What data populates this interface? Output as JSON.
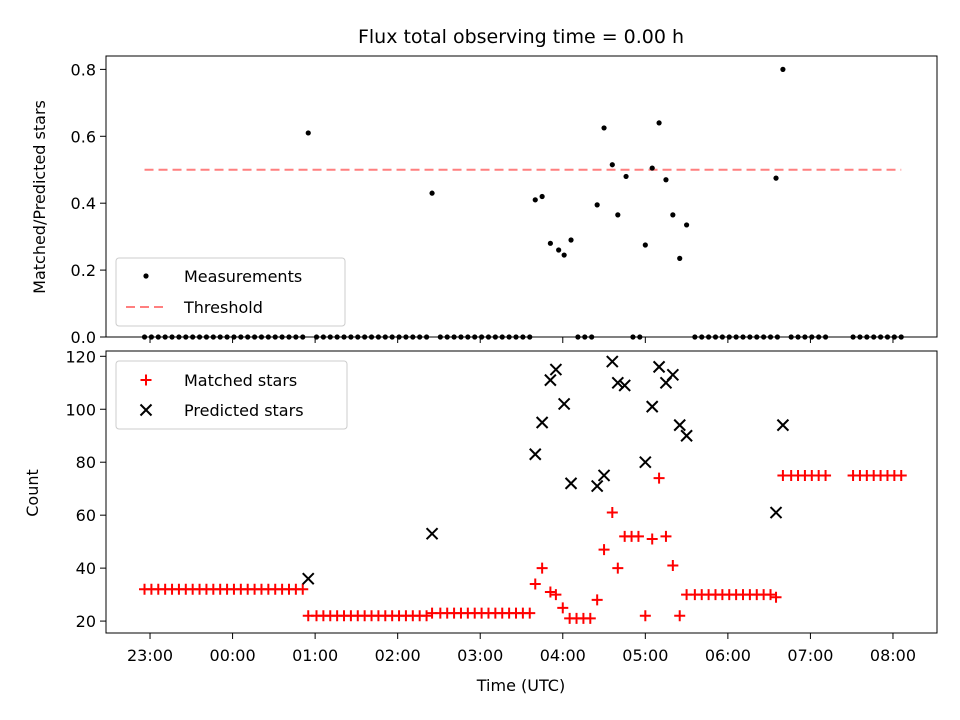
{
  "chart_data": [
    {
      "type": "scatter",
      "title": "Flux total observing time = 0.00 h",
      "xlabel": "",
      "ylabel": "Matched/Predicted stars",
      "xlim": [
        "22:28",
        "08:32"
      ],
      "ylim": [
        0,
        0.84
      ],
      "yticks": [
        0.0,
        0.2,
        0.4,
        0.6,
        0.8
      ],
      "legend_position": "lower-left",
      "legend": [
        {
          "label": "Measurements",
          "marker": "dot",
          "color": "#000000"
        },
        {
          "label": "Threshold",
          "marker": "dashed-line",
          "color": "#ff7f7f"
        }
      ],
      "threshold": {
        "value": 0.5,
        "x_start": "22:56",
        "x_end": "08:06"
      },
      "series": [
        {
          "name": "Measurements",
          "color": "#000000",
          "points": [
            [
              "22:56",
              0
            ],
            [
              "23:01",
              0
            ],
            [
              "23:06",
              0
            ],
            [
              "23:11",
              0
            ],
            [
              "23:16",
              0
            ],
            [
              "23:21",
              0
            ],
            [
              "23:26",
              0
            ],
            [
              "23:31",
              0
            ],
            [
              "23:36",
              0
            ],
            [
              "23:41",
              0
            ],
            [
              "23:46",
              0
            ],
            [
              "23:51",
              0
            ],
            [
              "23:56",
              0
            ],
            [
              "00:01",
              0
            ],
            [
              "00:06",
              0
            ],
            [
              "00:11",
              0
            ],
            [
              "00:16",
              0
            ],
            [
              "00:21",
              0
            ],
            [
              "00:26",
              0
            ],
            [
              "00:31",
              0
            ],
            [
              "00:36",
              0
            ],
            [
              "00:41",
              0
            ],
            [
              "00:46",
              0
            ],
            [
              "00:51",
              0
            ],
            [
              "00:55",
              0.61
            ],
            [
              "01:01",
              0
            ],
            [
              "01:06",
              0
            ],
            [
              "01:11",
              0
            ],
            [
              "01:16",
              0
            ],
            [
              "01:21",
              0
            ],
            [
              "01:26",
              0
            ],
            [
              "01:31",
              0
            ],
            [
              "01:36",
              0
            ],
            [
              "01:41",
              0
            ],
            [
              "01:46",
              0
            ],
            [
              "01:51",
              0
            ],
            [
              "01:56",
              0
            ],
            [
              "02:01",
              0
            ],
            [
              "02:06",
              0
            ],
            [
              "02:11",
              0
            ],
            [
              "02:16",
              0
            ],
            [
              "02:21",
              0
            ],
            [
              "02:25",
              0.43
            ],
            [
              "02:31",
              0
            ],
            [
              "02:36",
              0
            ],
            [
              "02:41",
              0
            ],
            [
              "02:46",
              0
            ],
            [
              "02:51",
              0
            ],
            [
              "02:56",
              0
            ],
            [
              "03:01",
              0
            ],
            [
              "03:06",
              0
            ],
            [
              "03:11",
              0
            ],
            [
              "03:16",
              0
            ],
            [
              "03:21",
              0
            ],
            [
              "03:26",
              0
            ],
            [
              "03:31",
              0
            ],
            [
              "03:36",
              0
            ],
            [
              "03:40",
              0.41
            ],
            [
              "03:45",
              0.42
            ],
            [
              "03:51",
              0.28
            ],
            [
              "03:57",
              0.26
            ],
            [
              "04:01",
              0.245
            ],
            [
              "04:06",
              0.29
            ],
            [
              "04:11",
              0
            ],
            [
              "04:16",
              0
            ],
            [
              "04:21",
              0
            ],
            [
              "04:25",
              0.395
            ],
            [
              "04:30",
              0.625
            ],
            [
              "04:36",
              0.515
            ],
            [
              "04:40",
              0.365
            ],
            [
              "04:46",
              0.48
            ],
            [
              "04:51",
              0
            ],
            [
              "04:56",
              0
            ],
            [
              "05:00",
              0.275
            ],
            [
              "05:05",
              0.505
            ],
            [
              "05:10",
              0.64
            ],
            [
              "05:15",
              0.47
            ],
            [
              "05:20",
              0.365
            ],
            [
              "05:25",
              0.235
            ],
            [
              "05:30",
              0.335
            ],
            [
              "05:36",
              0
            ],
            [
              "05:41",
              0
            ],
            [
              "05:46",
              0
            ],
            [
              "05:51",
              0
            ],
            [
              "05:56",
              0
            ],
            [
              "06:01",
              0
            ],
            [
              "06:06",
              0
            ],
            [
              "06:11",
              0
            ],
            [
              "06:16",
              0
            ],
            [
              "06:21",
              0
            ],
            [
              "06:26",
              0
            ],
            [
              "06:31",
              0
            ],
            [
              "06:36",
              0
            ],
            [
              "06:35",
              0.475
            ],
            [
              "06:40",
              0.8
            ],
            [
              "06:46",
              0
            ],
            [
              "06:51",
              0
            ],
            [
              "06:56",
              0
            ],
            [
              "07:01",
              0
            ],
            [
              "07:06",
              0
            ],
            [
              "07:11",
              0
            ],
            [
              "07:31",
              0
            ],
            [
              "07:36",
              0
            ],
            [
              "07:41",
              0
            ],
            [
              "07:46",
              0
            ],
            [
              "07:51",
              0
            ],
            [
              "07:56",
              0
            ],
            [
              "08:01",
              0
            ],
            [
              "08:06",
              0
            ]
          ]
        }
      ]
    },
    {
      "type": "scatter",
      "title": "",
      "xlabel": "Time (UTC)",
      "ylabel": "Count",
      "xlim": [
        "22:28",
        "08:32"
      ],
      "ylim": [
        15.5,
        122
      ],
      "yticks": [
        20,
        40,
        60,
        80,
        100,
        120
      ],
      "xticks": [
        "23:00",
        "00:00",
        "01:00",
        "02:00",
        "03:00",
        "04:00",
        "05:00",
        "06:00",
        "07:00",
        "08:00"
      ],
      "legend_position": "upper-left",
      "legend": [
        {
          "label": "Matched stars",
          "marker": "plus",
          "color": "#ff0000"
        },
        {
          "label": "Predicted stars",
          "marker": "x",
          "color": "#000000"
        }
      ],
      "series": [
        {
          "name": "Matched stars",
          "marker": "plus",
          "color": "#ff0000",
          "points": [
            [
              "22:56",
              32
            ],
            [
              "23:01",
              32
            ],
            [
              "23:06",
              32
            ],
            [
              "23:11",
              32
            ],
            [
              "23:16",
              32
            ],
            [
              "23:21",
              32
            ],
            [
              "23:26",
              32
            ],
            [
              "23:31",
              32
            ],
            [
              "23:36",
              32
            ],
            [
              "23:41",
              32
            ],
            [
              "23:46",
              32
            ],
            [
              "23:51",
              32
            ],
            [
              "23:56",
              32
            ],
            [
              "00:01",
              32
            ],
            [
              "00:06",
              32
            ],
            [
              "00:11",
              32
            ],
            [
              "00:16",
              32
            ],
            [
              "00:21",
              32
            ],
            [
              "00:26",
              32
            ],
            [
              "00:31",
              32
            ],
            [
              "00:36",
              32
            ],
            [
              "00:41",
              32
            ],
            [
              "00:46",
              32
            ],
            [
              "00:51",
              32
            ],
            [
              "00:55",
              22
            ],
            [
              "01:01",
              22
            ],
            [
              "01:06",
              22
            ],
            [
              "01:11",
              22
            ],
            [
              "01:16",
              22
            ],
            [
              "01:21",
              22
            ],
            [
              "01:26",
              22
            ],
            [
              "01:31",
              22
            ],
            [
              "01:36",
              22
            ],
            [
              "01:41",
              22
            ],
            [
              "01:46",
              22
            ],
            [
              "01:51",
              22
            ],
            [
              "01:56",
              22
            ],
            [
              "02:01",
              22
            ],
            [
              "02:06",
              22
            ],
            [
              "02:11",
              22
            ],
            [
              "02:16",
              22
            ],
            [
              "02:21",
              22
            ],
            [
              "02:25",
              23
            ],
            [
              "02:31",
              23
            ],
            [
              "02:36",
              23
            ],
            [
              "02:41",
              23
            ],
            [
              "02:46",
              23
            ],
            [
              "02:51",
              23
            ],
            [
              "02:56",
              23
            ],
            [
              "03:01",
              23
            ],
            [
              "03:06",
              23
            ],
            [
              "03:11",
              23
            ],
            [
              "03:16",
              23
            ],
            [
              "03:21",
              23
            ],
            [
              "03:26",
              23
            ],
            [
              "03:31",
              23
            ],
            [
              "03:36",
              23
            ],
            [
              "03:40",
              34
            ],
            [
              "03:45",
              40
            ],
            [
              "03:51",
              31
            ],
            [
              "03:55",
              30
            ],
            [
              "04:00",
              25
            ],
            [
              "04:05",
              21
            ],
            [
              "04:10",
              21
            ],
            [
              "04:15",
              21
            ],
            [
              "04:20",
              21
            ],
            [
              "04:25",
              28
            ],
            [
              "04:30",
              47
            ],
            [
              "04:36",
              61
            ],
            [
              "04:40",
              40
            ],
            [
              "04:45",
              52
            ],
            [
              "04:50",
              52
            ],
            [
              "04:55",
              52
            ],
            [
              "05:00",
              22
            ],
            [
              "05:05",
              51
            ],
            [
              "05:10",
              74
            ],
            [
              "05:15",
              52
            ],
            [
              "05:20",
              41
            ],
            [
              "05:25",
              22
            ],
            [
              "05:30",
              30
            ],
            [
              "05:36",
              30
            ],
            [
              "05:41",
              30
            ],
            [
              "05:46",
              30
            ],
            [
              "05:51",
              30
            ],
            [
              "05:56",
              30
            ],
            [
              "06:01",
              30
            ],
            [
              "06:06",
              30
            ],
            [
              "06:11",
              30
            ],
            [
              "06:16",
              30
            ],
            [
              "06:21",
              30
            ],
            [
              "06:26",
              30
            ],
            [
              "06:31",
              30
            ],
            [
              "06:35",
              29
            ],
            [
              "06:40",
              75
            ],
            [
              "06:46",
              75
            ],
            [
              "06:51",
              75
            ],
            [
              "06:56",
              75
            ],
            [
              "07:01",
              75
            ],
            [
              "07:06",
              75
            ],
            [
              "07:11",
              75
            ],
            [
              "07:31",
              75
            ],
            [
              "07:36",
              75
            ],
            [
              "07:41",
              75
            ],
            [
              "07:46",
              75
            ],
            [
              "07:51",
              75
            ],
            [
              "07:56",
              75
            ],
            [
              "08:01",
              75
            ],
            [
              "08:06",
              75
            ]
          ]
        },
        {
          "name": "Predicted stars",
          "marker": "x",
          "color": "#000000",
          "points": [
            [
              "00:55",
              36
            ],
            [
              "02:25",
              53
            ],
            [
              "03:40",
              83
            ],
            [
              "03:45",
              95
            ],
            [
              "03:51",
              111
            ],
            [
              "03:55",
              115
            ],
            [
              "04:01",
              102
            ],
            [
              "04:06",
              72
            ],
            [
              "04:25",
              71
            ],
            [
              "04:30",
              75
            ],
            [
              "04:36",
              118
            ],
            [
              "04:40",
              110
            ],
            [
              "04:45",
              109
            ],
            [
              "05:00",
              80
            ],
            [
              "05:05",
              101
            ],
            [
              "05:10",
              116
            ],
            [
              "05:15",
              110
            ],
            [
              "05:20",
              113
            ],
            [
              "05:25",
              94
            ],
            [
              "05:30",
              90
            ],
            [
              "06:35",
              61
            ],
            [
              "06:40",
              94
            ]
          ]
        }
      ]
    }
  ]
}
